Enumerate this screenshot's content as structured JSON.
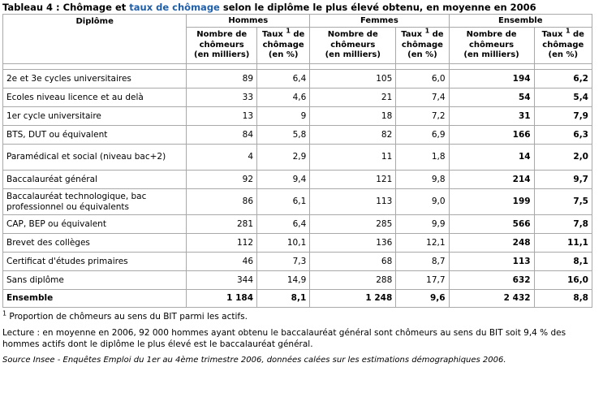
{
  "title": {
    "prefix": "Tableau 4 : Chômage et ",
    "link": "taux de chômage",
    "suffix": " selon le diplôme le plus élevé obtenu, en moyenne en 2006"
  },
  "table": {
    "col_diplome": "Diplôme",
    "groups": [
      "Hommes",
      "Femmes",
      "Ensemble"
    ],
    "sub_nombre": [
      "Nombre de",
      "chômeurs",
      "(en milliers)"
    ],
    "sub_taux_pre": "Taux ",
    "sub_taux_sup": "1",
    "sub_taux_post": " de",
    "sub_taux_rest": [
      "chômage",
      "(en %)"
    ],
    "rows": [
      {
        "label": "2e et 3e cycles universitaires",
        "values": [
          "89",
          "6,4",
          "105",
          "6,0",
          "194",
          "6,2"
        ]
      },
      {
        "label": "Ecoles niveau licence et au delà",
        "values": [
          "33",
          "4,6",
          "21",
          "7,4",
          "54",
          "5,4"
        ]
      },
      {
        "label": "1er cycle universitaire",
        "values": [
          "13",
          "9",
          "18",
          "7,2",
          "31",
          "7,9"
        ]
      },
      {
        "label": "BTS, DUT ou équivalent",
        "values": [
          "84",
          "5,8",
          "82",
          "6,9",
          "166",
          "6,3"
        ]
      },
      {
        "label": "Paramédical et social (niveau bac+2)",
        "values": [
          "4",
          "2,9",
          "11",
          "1,8",
          "14",
          "2,0"
        ]
      },
      {
        "label": "Baccalauréat général",
        "values": [
          "92",
          "9,4",
          "121",
          "9,8",
          "214",
          "9,7"
        ]
      },
      {
        "label": "Baccalauréat technologique, bac professionnel ou équivalents",
        "values": [
          "86",
          "6,1",
          "113",
          "9,0",
          "199",
          "7,5"
        ]
      },
      {
        "label": "CAP, BEP ou équivalent",
        "values": [
          "281",
          "6,4",
          "285",
          "9,9",
          "566",
          "7,8"
        ]
      },
      {
        "label": "Brevet des collèges",
        "values": [
          "112",
          "10,1",
          "136",
          "12,1",
          "248",
          "11,1"
        ]
      },
      {
        "label": "Certificat d'études primaires",
        "values": [
          "46",
          "7,3",
          "68",
          "8,7",
          "113",
          "8,1"
        ]
      },
      {
        "label": "Sans diplôme",
        "values": [
          "344",
          "14,9",
          "288",
          "17,7",
          "632",
          "16,0"
        ]
      },
      {
        "label": "Ensemble",
        "values": [
          "1 184",
          "8,1",
          "1 248",
          "9,6",
          "2 432",
          "8,8"
        ],
        "total": true
      }
    ]
  },
  "notes": {
    "footnote_sup": "1",
    "footnote": " Proportion de chômeurs au sens du BIT parmi les actifs.",
    "lecture": "Lecture : en moyenne en 2006, 92 000 hommes ayant obtenu le baccalauréat général sont chômeurs au sens du BIT soit 9,4 % des hommes actifs dont le diplôme le plus élevé est le baccalauréat général.",
    "source": "Source Insee - Enquêtes Emploi du 1er au 4ème trimestre 2006, données calées sur les estimations démographiques 2006."
  }
}
